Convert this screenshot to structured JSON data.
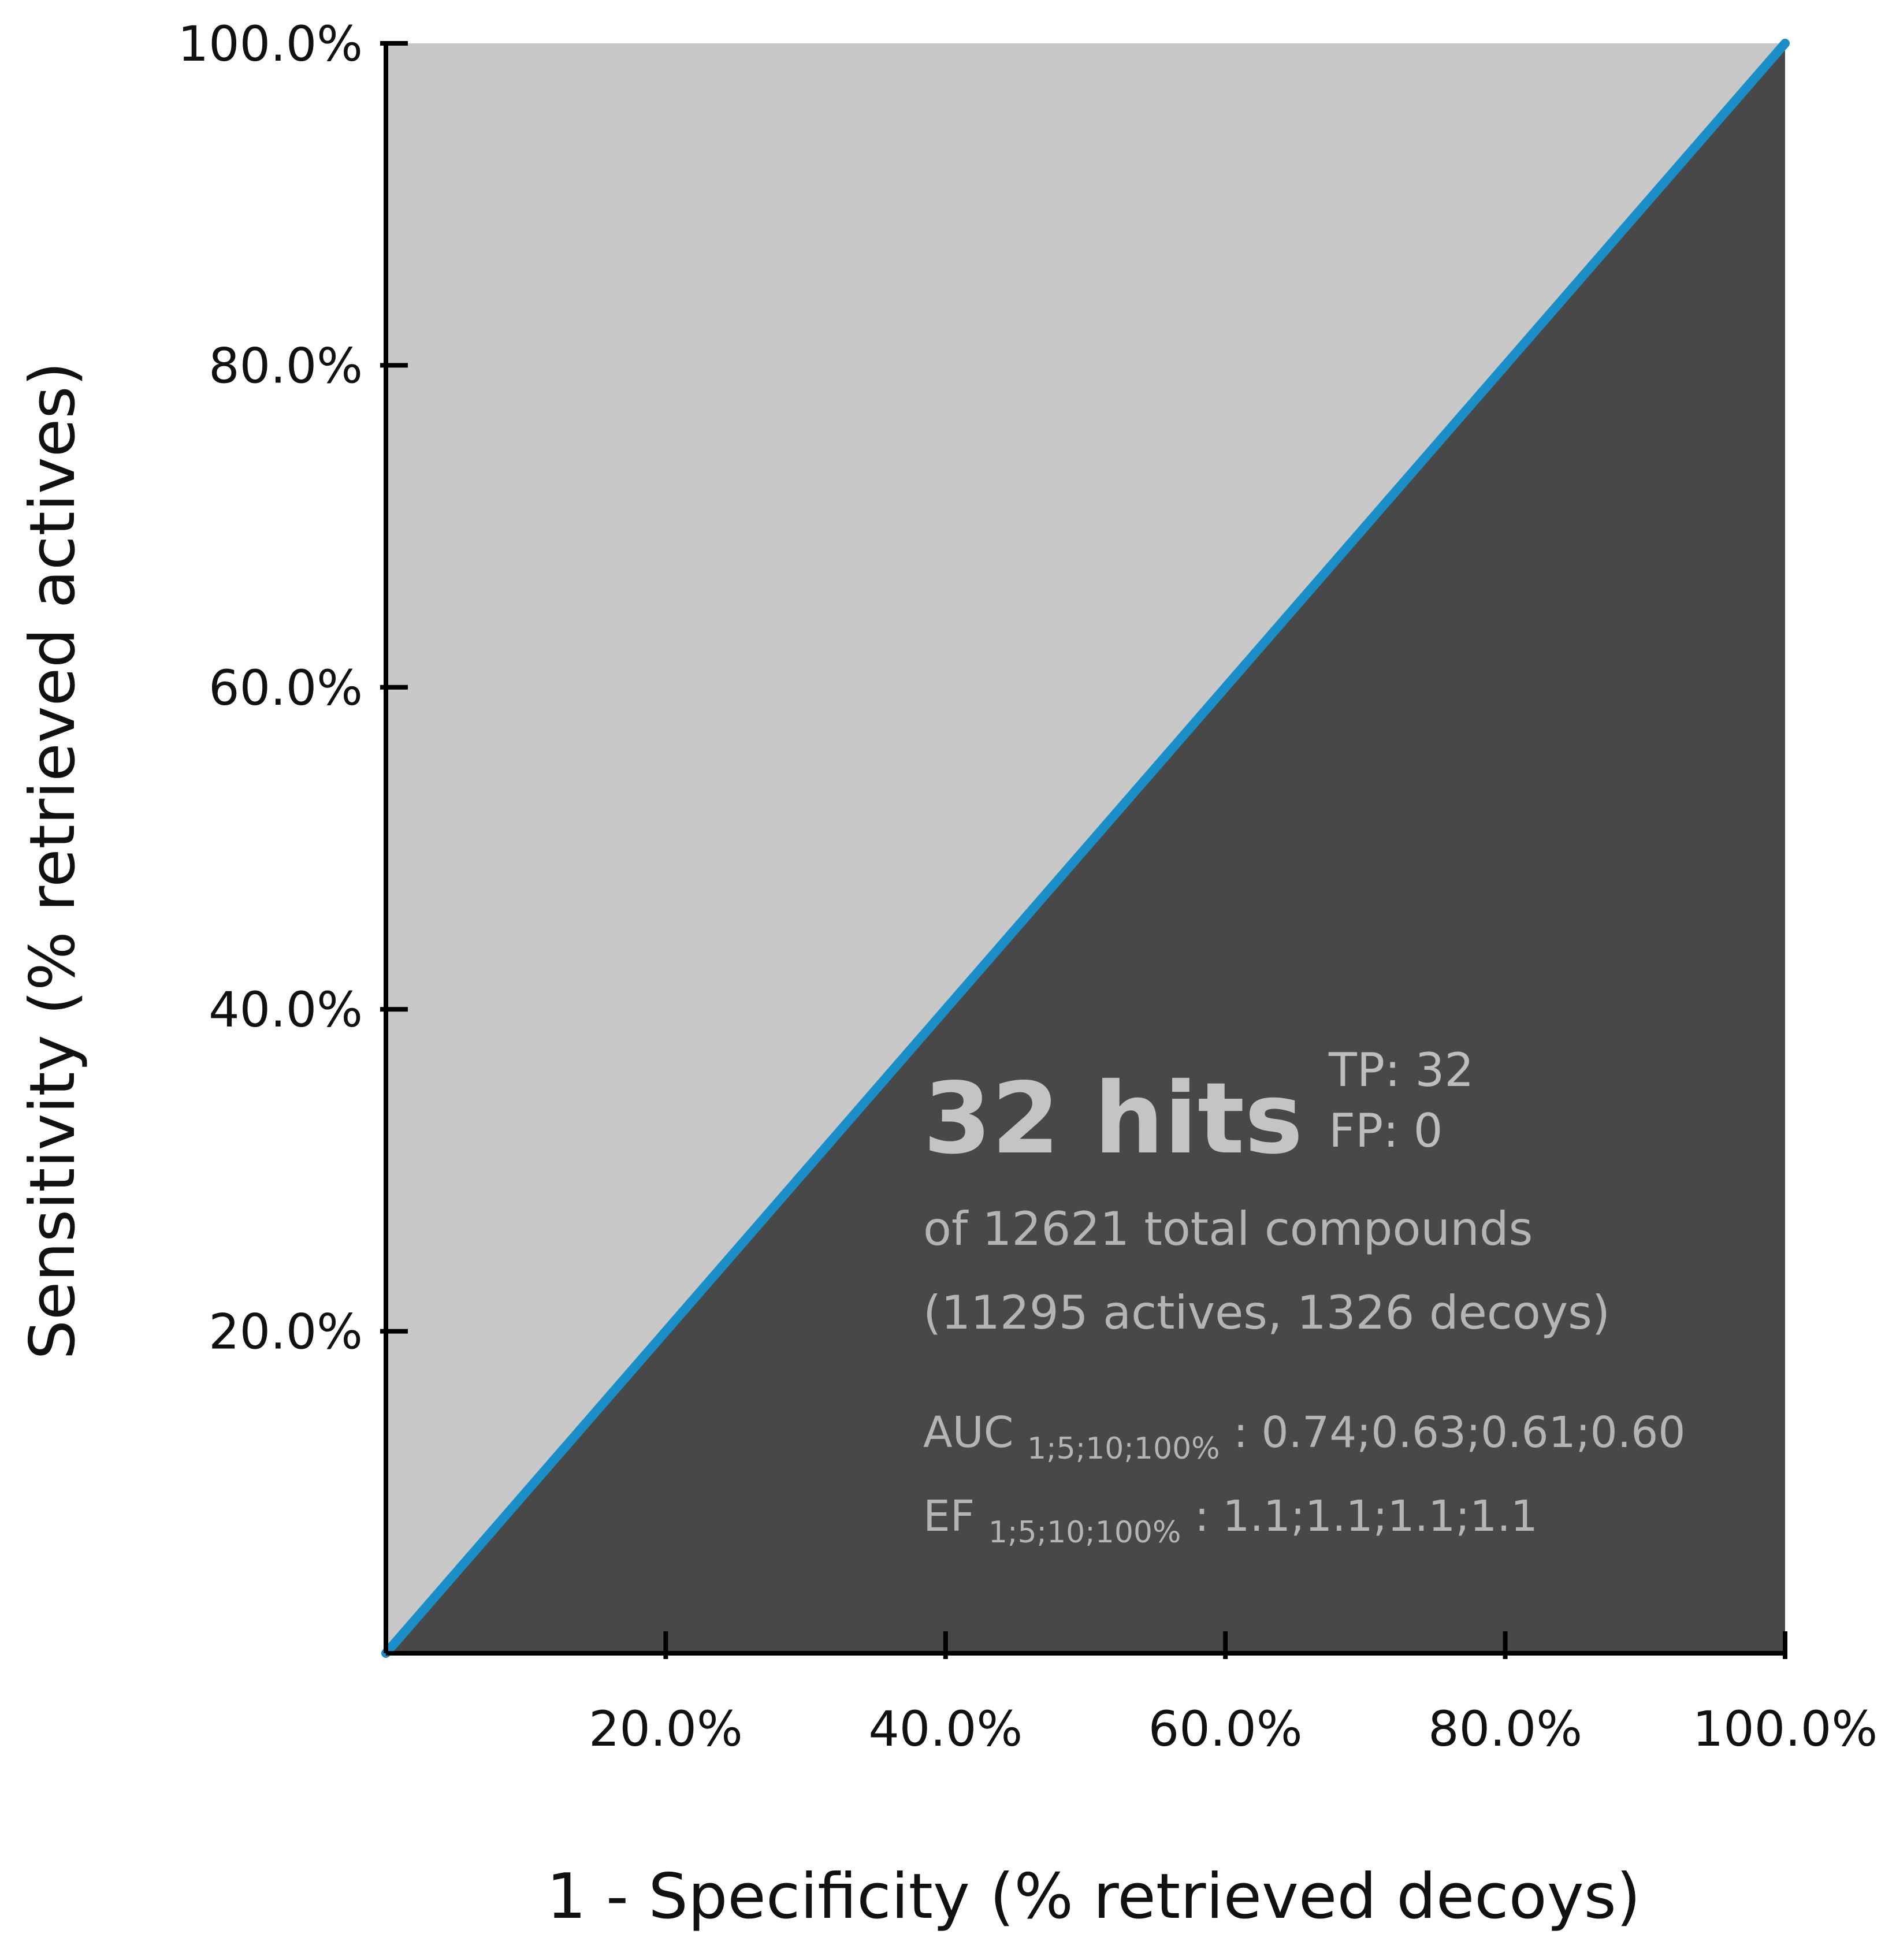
{
  "chart_data": {
    "type": "line",
    "xlabel": "1 - Specificity (% retrieved decoys)",
    "ylabel": "Sensitivity (% retrieved actives)",
    "xlim": [
      0,
      100
    ],
    "ylim": [
      0,
      100
    ],
    "x_ticks": [
      "20.0%",
      "40.0%",
      "60.0%",
      "80.0%",
      "100.0%"
    ],
    "y_ticks": [
      "20.0%",
      "40.0%",
      "60.0%",
      "80.0%",
      "100.0%"
    ],
    "series": [
      {
        "x": [
          0,
          100
        ],
        "y": [
          0,
          100
        ],
        "color": "#1a8fc7"
      }
    ],
    "fill_above_color": "#c8c8c8",
    "fill_below_color": "#484848",
    "grid": false,
    "annotations": {
      "hits": "32 hits",
      "tp": "TP: 32",
      "fp": "FP: 0",
      "total": "of 12621 total compounds",
      "breakdown": "(11295 actives, 1326 decoys)",
      "auc_label": "AUC",
      "auc_sub": "1;5;10;100%",
      "auc_values": ": 0.74;0.63;0.61;0.60",
      "ef_label": "EF",
      "ef_sub": "1;5;10;100%",
      "ef_values": ": 1.1;1.1;1.1;1.1"
    },
    "annotation_colors": {
      "hits": "#c4c4c4",
      "tp_fp": "#bdbdbd",
      "text": "#b4b4b4"
    }
  }
}
